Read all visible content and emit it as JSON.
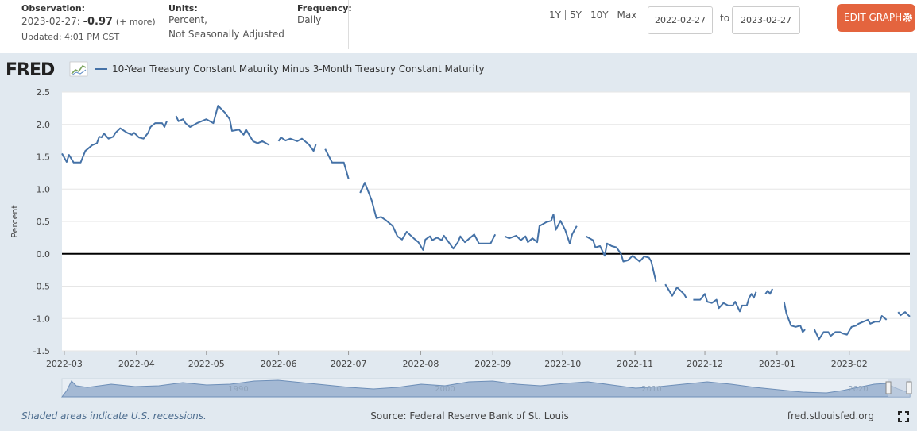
{
  "header": {
    "observation_label": "Observation:",
    "observation_date": "2023-02-27:",
    "observation_value": "-0.97",
    "more": "(+ more)",
    "updated": "Updated: 4:01 PM CST",
    "units_label": "Units:",
    "units_line1": "Percent,",
    "units_line2": "Not Seasonally Adjusted",
    "frequency_label": "Frequency:",
    "frequency": "Daily",
    "ranges": [
      "1Y",
      "5Y",
      "10Y",
      "Max"
    ],
    "start_date": "2022-02-27",
    "to": "to",
    "end_date": "2023-02-27",
    "edit_button": "EDIT GRAPH"
  },
  "logo": "FRED",
  "navigator_labels": [
    "1990",
    "2000",
    "2010",
    "2020"
  ],
  "footer": {
    "note": "Shaded areas indicate U.S. recessions.",
    "source": "Source: Federal Reserve Bank of St. Louis",
    "site": "fred.stlouisfed.org"
  },
  "chart_data": {
    "type": "line",
    "y_label": "Percent",
    "grid": true,
    "zero_line": true,
    "xlim": [
      "2022-02-28",
      "2023-02-27"
    ],
    "xticks": [
      "2022-03",
      "2022-04",
      "2022-05",
      "2022-06",
      "2022-07",
      "2022-08",
      "2022-09",
      "2022-10",
      "2022-11",
      "2022-12",
      "2023-01",
      "2023-02"
    ],
    "ylim": [
      -1.5,
      2.5
    ],
    "yticks": [
      2.5,
      {
        "value": 2,
        "label": "2.0"
      },
      1.5,
      {
        "value": 1,
        "label": "1.0"
      },
      0.5,
      {
        "value": 0,
        "label": "0.0"
      },
      -0.5,
      {
        "value": -1,
        "label": "-1.0"
      },
      -1.5
    ],
    "x": [
      "2022-02-28",
      "2022-03-02",
      "2022-03-03",
      "2022-03-05",
      "2022-03-08",
      "2022-03-10",
      "2022-03-13",
      "2022-03-15",
      "2022-03-16",
      "2022-03-17",
      "2022-03-18",
      "2022-03-20",
      "2022-03-22",
      "2022-03-23",
      "2022-03-25",
      "2022-03-28",
      "2022-03-30",
      "2022-03-31",
      "2022-04-02",
      "2022-04-04",
      "2022-04-06",
      "2022-04-07",
      "2022-04-09",
      "2022-04-12",
      "2022-04-13",
      "2022-04-14",
      "2022-04-15",
      "2022-04-18",
      "2022-04-19",
      "2022-04-21",
      "2022-04-22",
      "2022-04-24",
      "2022-04-27",
      "2022-05-01",
      "2022-05-04",
      "2022-05-06",
      "2022-05-09",
      "2022-05-11",
      "2022-05-12",
      "2022-05-15",
      "2022-05-17",
      "2022-05-18",
      "2022-05-21",
      "2022-05-23",
      "2022-05-25",
      "2022-05-28",
      "2022-05-30",
      "2022-06-01",
      "2022-06-02",
      "2022-06-04",
      "2022-06-06",
      "2022-06-09",
      "2022-06-11",
      "2022-06-14",
      "2022-06-16",
      "2022-06-17",
      "2022-06-20",
      "2022-06-21",
      "2022-06-24",
      "2022-06-26",
      "2022-06-29",
      "2022-07-01",
      "2022-07-04",
      "2022-07-06",
      "2022-07-08",
      "2022-07-11",
      "2022-07-13",
      "2022-07-15",
      "2022-07-17",
      "2022-07-20",
      "2022-07-22",
      "2022-07-24",
      "2022-07-26",
      "2022-07-29",
      "2022-07-31",
      "2022-08-02",
      "2022-08-03",
      "2022-08-05",
      "2022-08-06",
      "2022-08-08",
      "2022-08-10",
      "2022-08-11",
      "2022-08-13",
      "2022-08-15",
      "2022-08-17",
      "2022-08-18",
      "2022-08-20",
      "2022-08-22",
      "2022-08-24",
      "2022-08-26",
      "2022-08-29",
      "2022-08-31",
      "2022-09-02",
      "2022-09-05",
      "2022-09-06",
      "2022-09-08",
      "2022-09-11",
      "2022-09-13",
      "2022-09-15",
      "2022-09-16",
      "2022-09-18",
      "2022-09-20",
      "2022-09-21",
      "2022-09-24",
      "2022-09-26",
      "2022-09-27",
      "2022-09-28",
      "2022-09-30",
      "2022-10-02",
      "2022-10-04",
      "2022-10-05",
      "2022-10-07",
      "2022-10-10",
      "2022-10-11",
      "2022-10-14",
      "2022-10-15",
      "2022-10-17",
      "2022-10-19",
      "2022-10-20",
      "2022-10-22",
      "2022-10-24",
      "2022-10-26",
      "2022-10-27",
      "2022-10-29",
      "2022-10-31",
      "2022-11-01",
      "2022-11-03",
      "2022-11-05",
      "2022-11-07",
      "2022-11-08",
      "2022-11-10",
      "2022-11-11",
      "2022-11-14",
      "2022-11-17",
      "2022-11-19",
      "2022-11-20",
      "2022-11-22",
      "2022-11-23",
      "2022-11-24",
      "2022-11-26",
      "2022-11-29",
      "2022-12-01",
      "2022-12-02",
      "2022-12-04",
      "2022-12-06",
      "2022-12-07",
      "2022-12-09",
      "2022-12-11",
      "2022-12-13",
      "2022-12-14",
      "2022-12-16",
      "2022-12-17",
      "2022-12-19",
      "2022-12-20",
      "2022-12-21",
      "2022-12-22",
      "2022-12-23",
      "2022-12-26",
      "2022-12-27",
      "2022-12-28",
      "2022-12-29",
      "2022-12-30",
      "2023-01-02",
      "2023-01-04",
      "2023-01-05",
      "2023-01-07",
      "2023-01-09",
      "2023-01-11",
      "2023-01-12",
      "2023-01-13",
      "2023-01-16",
      "2023-01-17",
      "2023-01-19",
      "2023-01-21",
      "2023-01-23",
      "2023-01-24",
      "2023-01-26",
      "2023-01-28",
      "2023-01-29",
      "2023-01-31",
      "2023-02-02",
      "2023-02-04",
      "2023-02-05",
      "2023-02-07",
      "2023-02-09",
      "2023-02-10",
      "2023-02-12",
      "2023-02-14",
      "2023-02-15",
      "2023-02-17",
      "2023-02-20",
      "2023-02-22",
      "2023-02-23",
      "2023-02-25",
      "2023-02-27"
    ],
    "series": [
      {
        "name": "10-Year Treasury Constant Maturity Minus 3-Month Treasury Constant Maturity",
        "color": "#4572a7",
        "values": [
          1.55,
          1.42,
          1.53,
          1.41,
          1.41,
          1.59,
          1.68,
          1.71,
          1.81,
          1.8,
          1.86,
          1.78,
          1.81,
          1.87,
          1.94,
          1.87,
          1.84,
          1.87,
          1.8,
          1.78,
          1.87,
          1.96,
          2.02,
          2.02,
          1.96,
          2.05,
          null,
          2.13,
          2.05,
          2.08,
          2.02,
          1.96,
          2.02,
          2.08,
          2.02,
          2.29,
          2.18,
          2.08,
          1.9,
          1.92,
          1.84,
          1.92,
          1.74,
          1.71,
          1.74,
          1.68,
          null,
          1.74,
          1.8,
          1.75,
          1.78,
          1.74,
          1.78,
          1.69,
          1.59,
          1.69,
          null,
          1.62,
          1.41,
          1.41,
          1.41,
          1.16,
          null,
          0.94,
          1.1,
          0.82,
          0.55,
          0.57,
          0.52,
          0.43,
          0.27,
          0.22,
          0.34,
          0.24,
          0.18,
          0.06,
          0.22,
          0.27,
          0.21,
          0.25,
          0.21,
          0.28,
          0.18,
          0.08,
          0.18,
          0.27,
          0.18,
          0.24,
          0.3,
          0.16,
          0.16,
          0.16,
          0.3,
          null,
          0.27,
          0.24,
          0.28,
          0.21,
          0.27,
          0.18,
          0.24,
          0.18,
          0.43,
          0.49,
          0.51,
          0.61,
          0.37,
          0.51,
          0.37,
          0.16,
          0.3,
          0.43,
          null,
          0.27,
          0.21,
          0.1,
          0.12,
          -0.03,
          0.16,
          0.12,
          0.1,
          0.0,
          -0.12,
          -0.1,
          -0.03,
          -0.06,
          -0.12,
          -0.04,
          -0.06,
          -0.12,
          -0.43,
          null,
          -0.47,
          -0.65,
          -0.52,
          -0.55,
          -0.62,
          -0.68,
          null,
          -0.71,
          -0.71,
          -0.62,
          -0.74,
          -0.76,
          -0.71,
          -0.84,
          -0.76,
          -0.8,
          -0.8,
          -0.74,
          -0.89,
          -0.8,
          -0.8,
          -0.68,
          -0.62,
          -0.68,
          -0.59,
          null,
          -0.62,
          -0.57,
          -0.62,
          -0.54,
          null,
          -0.74,
          -0.92,
          -1.11,
          -1.13,
          -1.11,
          -1.21,
          -1.17,
          null,
          -1.17,
          -1.32,
          -1.21,
          -1.21,
          -1.27,
          -1.21,
          -1.21,
          -1.23,
          -1.25,
          -1.13,
          -1.11,
          -1.08,
          -1.05,
          -1.02,
          -1.08,
          -1.05,
          -1.05,
          -0.96,
          -1.02,
          null,
          -0.9,
          -0.95,
          -0.9,
          -0.97
        ]
      }
    ]
  }
}
